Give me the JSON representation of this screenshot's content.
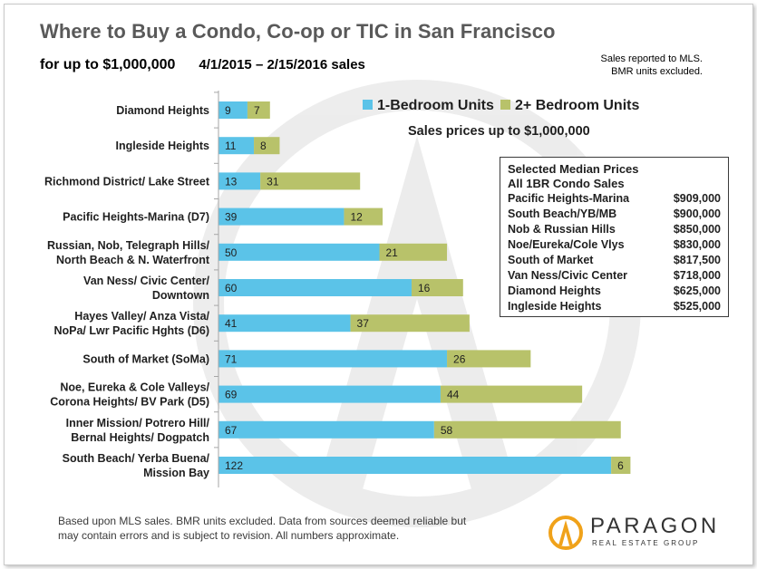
{
  "title": "Where to Buy a Condo, Co-op or TIC in San Francisco",
  "subtitle": "for up to $1,000,000",
  "date_range": "4/1/2015 – 2/15/2016 sales",
  "note": [
    "Sales reported to MLS.",
    "BMR units excluded."
  ],
  "sales_note": "Sales prices up to $1,000,000",
  "colors": {
    "one_bedroom": "#5bc3e8",
    "two_plus": "#b8c26a",
    "axis": "#a6a6a6"
  },
  "chart_data": {
    "type": "bar",
    "orientation": "horizontal",
    "stacked": true,
    "categories": [
      [
        "Diamond Heights"
      ],
      [
        "Ingleside Heights"
      ],
      [
        "Richmond District/ Lake Street"
      ],
      [
        "Pacific Heights-Marina (D7)"
      ],
      [
        "Russian, Nob, Telegraph Hills/",
        "North Beach & N. Waterfront"
      ],
      [
        "Van Ness/ Civic Center/",
        "Downtown"
      ],
      [
        "Hayes Valley/ Anza Vista/",
        "NoPa/ Lwr Pacific Hghts (D6)"
      ],
      [
        "South of Market (SoMa)"
      ],
      [
        "Noe, Eureka & Cole Valleys/",
        "Corona Heights/ BV Park (D5)"
      ],
      [
        "Inner Mission/ Potrero Hill/",
        "Bernal Heights/ Dogpatch"
      ],
      [
        "South Beach/ Yerba Buena/",
        "Mission Bay"
      ]
    ],
    "series": [
      {
        "name": "1-Bedroom Units",
        "values": [
          9,
          11,
          13,
          39,
          50,
          60,
          41,
          71,
          69,
          67,
          122
        ]
      },
      {
        "name": "2+ Bedroom Units",
        "values": [
          7,
          8,
          31,
          12,
          21,
          16,
          37,
          26,
          44,
          58,
          6
        ]
      }
    ],
    "xlim": [
      0,
      130
    ],
    "grid": false,
    "legend_position": "top-right"
  },
  "median_box": {
    "heading": [
      "Selected Median Prices",
      "All 1BR Condo Sales"
    ],
    "rows": [
      {
        "area": "Pacific Heights-Marina",
        "price": "$909,000"
      },
      {
        "area": "South Beach/YB/MB",
        "price": "$900,000"
      },
      {
        "area": "Nob & Russian Hills",
        "price": "$850,000"
      },
      {
        "area": "Noe/Eureka/Cole Vlys",
        "price": "$830,000"
      },
      {
        "area": "South of Market",
        "price": "$817,500"
      },
      {
        "area": "Van Ness/Civic Center",
        "price": "$718,000"
      },
      {
        "area": "Diamond Heights",
        "price": "$625,000"
      },
      {
        "area": "Ingleside Heights",
        "price": "$525,000"
      }
    ]
  },
  "footer": [
    "Based upon MLS  sales. BMR units excluded. Data from sources deemed reliable but",
    "may contain errors and is subject to revision. All numbers approximate."
  ],
  "logo": {
    "name": "PARAGON",
    "tagline": "REAL ESTATE GROUP"
  }
}
